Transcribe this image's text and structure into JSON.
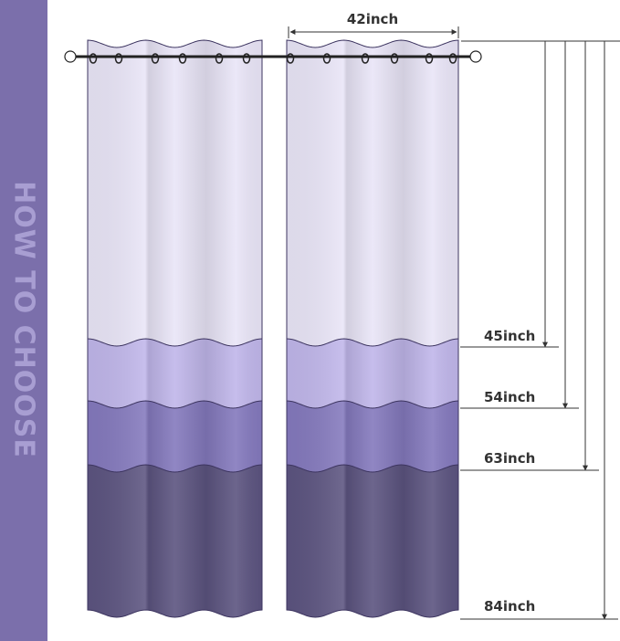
{
  "side_title": "HOW TO CHOOSE",
  "width_label": "42inch",
  "length_labels": [
    "45inch",
    "54inch",
    "63inch",
    "84inch"
  ],
  "colors": {
    "sidebar": "#7b6fab",
    "band_top": "#e9e5f7",
    "band_45": "#c0b6ea",
    "band_63": "#8479bd",
    "band_84": "#5c5480",
    "line": "#333333"
  }
}
